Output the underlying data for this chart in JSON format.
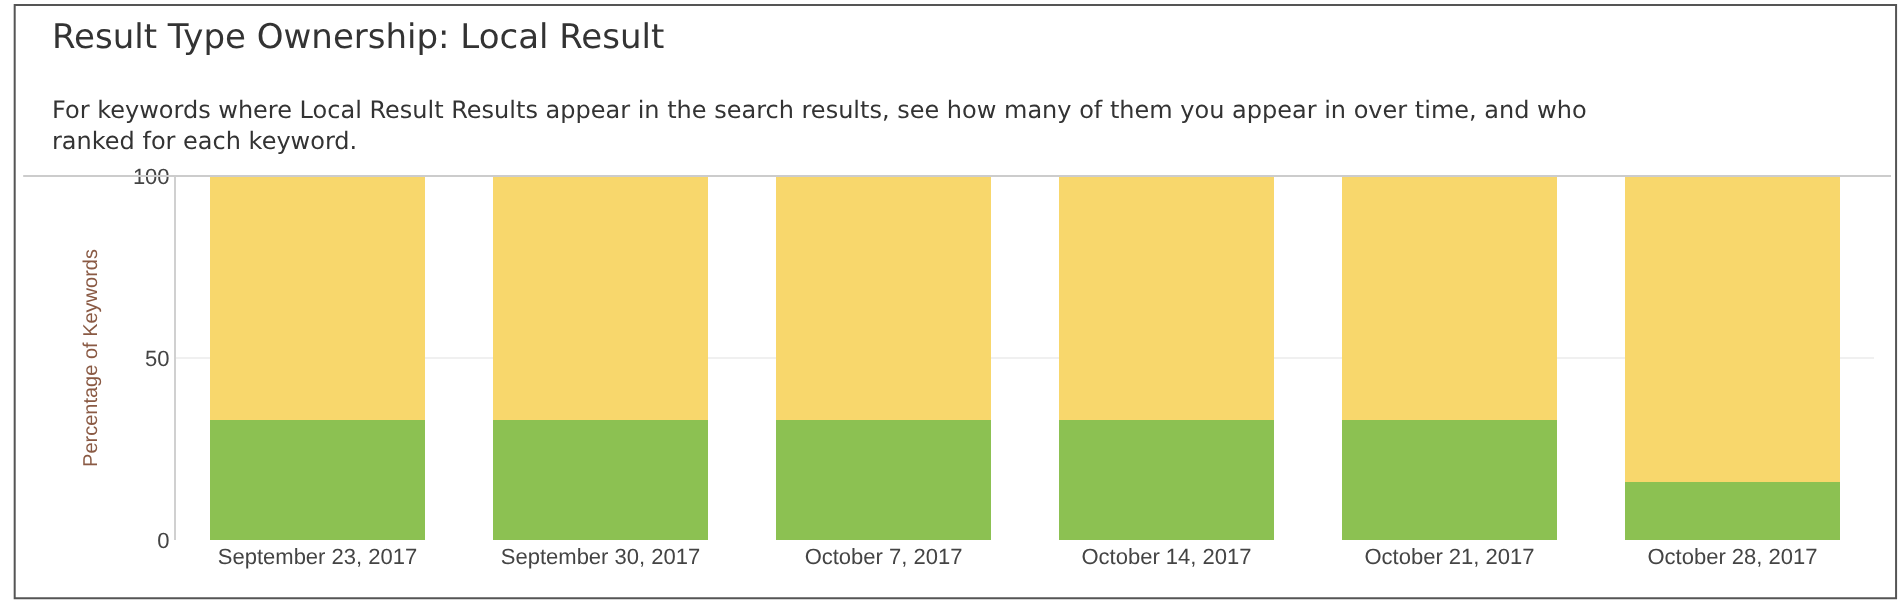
{
  "chart_data": {
    "type": "bar",
    "stacked": true,
    "title": "Result Type Ownership: Local Result",
    "subtitle": "For keywords where Local Result Results appear in the search results, see how many of them you appear in over time, and who ranked for each keyword.",
    "ylabel": "Percentage of Keywords",
    "categories": [
      "September 23, 2017",
      "September 30, 2017",
      "October 7, 2017",
      "October 14, 2017",
      "October 21, 2017",
      "October 28, 2017"
    ],
    "series": [
      {
        "color": "#8cc152",
        "values": [
          33,
          33,
          33,
          33,
          33,
          16
        ]
      },
      {
        "color": "#f8d76c",
        "values": [
          67,
          67,
          67,
          67,
          67,
          84
        ]
      }
    ],
    "ylim": [
      0,
      100
    ],
    "yticks": [
      0,
      50,
      100
    ],
    "grid": "y"
  }
}
